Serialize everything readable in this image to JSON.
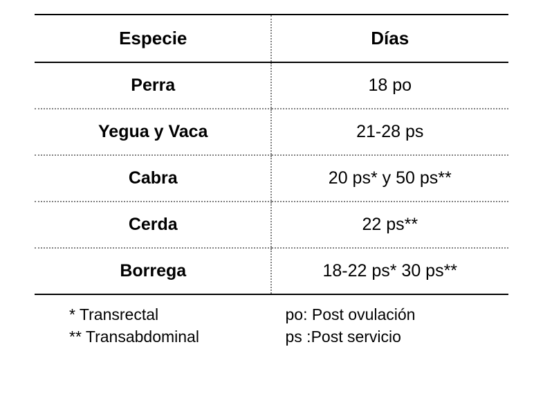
{
  "table": {
    "columns": [
      "Especie",
      "Días"
    ],
    "rows": [
      {
        "species": "Perra",
        "days": "18 po"
      },
      {
        "species": "Yegua y Vaca",
        "days": "21-28 ps"
      },
      {
        "species": "Cabra",
        "days": "20 ps* y 50 ps**"
      },
      {
        "species": "Cerda",
        "days": "22 ps**"
      },
      {
        "species": "Borrega",
        "days": "18-22 ps* 30 ps**"
      }
    ],
    "header_fontsize": 26,
    "cell_fontsize": 25,
    "border_top_color": "#000000",
    "border_bottom_color": "#000000",
    "row_divider_style": "dotted",
    "row_divider_color": "#808080",
    "column_divider_style": "dotted",
    "column_divider_color": "#808080",
    "background_color": "#ffffff",
    "text_color": "#000000"
  },
  "legend": {
    "left": {
      "line1": "* Transrectal",
      "line2": "** Transabdominal"
    },
    "right": {
      "line1": "po: Post ovulación",
      "line2": "ps :Post servicio"
    },
    "fontsize": 23
  }
}
